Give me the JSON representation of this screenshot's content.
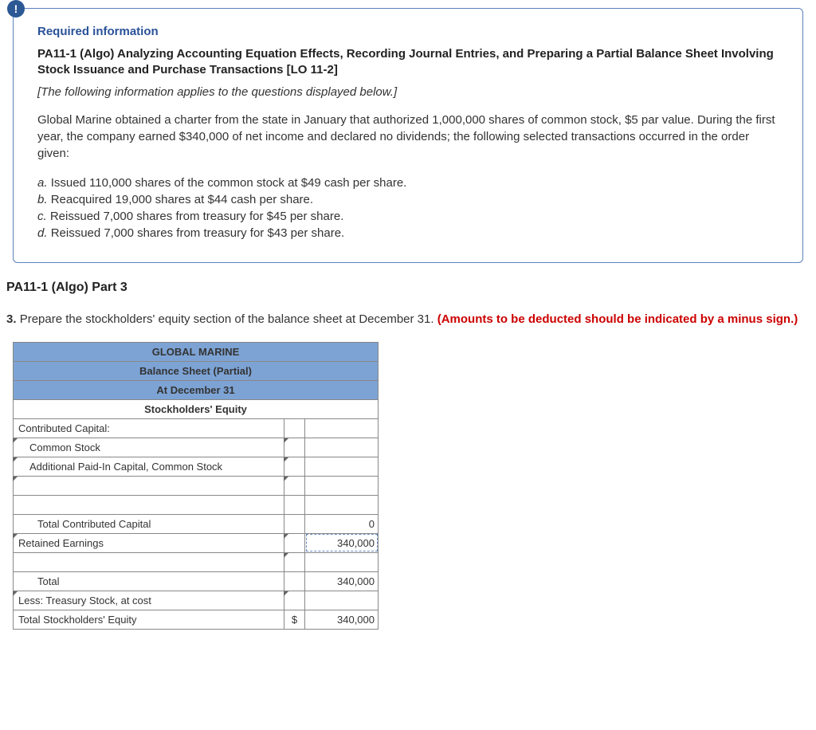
{
  "badge": "!",
  "required": {
    "heading": "Required information",
    "title": "PA11-1 (Algo) Analyzing Accounting Equation Effects, Recording Journal Entries, and Preparing a Partial Balance Sheet Involving Stock Issuance and Purchase Transactions [LO 11-2]",
    "applies": "[The following information applies to the questions displayed below.]",
    "body": "Global Marine obtained a charter from the state in January that authorized 1,000,000 shares of common stock, $5 par value. During the first year, the company earned $340,000 of net income and declared no dividends; the following selected transactions occurred in the order given:",
    "transactions": [
      {
        "label": "a.",
        "text": "Issued 110,000 shares of the common stock at $49 cash per share."
      },
      {
        "label": "b.",
        "text": "Reacquired 19,000 shares at $44 cash per share."
      },
      {
        "label": "c.",
        "text": "Reissued 7,000 shares from treasury for $45 per share."
      },
      {
        "label": "d.",
        "text": "Reissued 7,000 shares from treasury for $43 per share."
      }
    ]
  },
  "part_heading": "PA11-1 (Algo) Part 3",
  "instruction": {
    "lead": "3. ",
    "text": "Prepare the stockholders' equity section of the balance sheet at December 31. ",
    "red": "(Amounts to be deducted should be indicated by a minus sign.)"
  },
  "table": {
    "headers": {
      "company": "GLOBAL MARINE",
      "sheet": "Balance Sheet (Partial)",
      "date": "At December 31",
      "section": "Stockholders' Equity"
    },
    "rows": {
      "contributed_capital": "Contributed Capital:",
      "common_stock": "Common Stock",
      "apic": "Additional Paid-In Capital, Common Stock",
      "total_contributed": {
        "label": "Total Contributed Capital",
        "value": "0"
      },
      "retained_earnings": {
        "label": "Retained Earnings",
        "value": "340,000"
      },
      "total": {
        "label": "Total",
        "value": "340,000"
      },
      "less_treasury": "Less: Treasury Stock, at cost",
      "total_se": {
        "label": "Total Stockholders' Equity",
        "symbol": "$",
        "value": "340,000"
      }
    }
  }
}
